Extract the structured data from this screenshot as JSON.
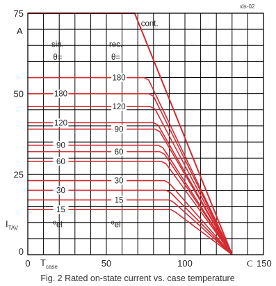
{
  "chart_data": {
    "type": "line",
    "caption": "Fig. 2 Rated on-state current vs. case temperature",
    "code": "xls-02",
    "xlim": [
      0,
      150
    ],
    "ylim": [
      0,
      75
    ],
    "x_ticks": [
      "0",
      "50",
      "100",
      "150"
    ],
    "x_label": "T",
    "x_label_sub": "case",
    "x_unit": "C",
    "y_ticks": [
      "0",
      "25",
      "50",
      "75"
    ],
    "y_unit": "A",
    "y_label": "I",
    "y_label_sub": "TAV",
    "grid": true,
    "line_color": "#d42a30",
    "end_point": [
      130,
      0
    ],
    "cont": {
      "label": "cont.",
      "points": [
        [
          0,
          75
        ],
        [
          68,
          75
        ],
        [
          130,
          0
        ]
      ]
    },
    "groups": [
      {
        "name": "sin.",
        "theta": "θ=",
        "unit": "el",
        "unit_prefix": "o",
        "series": [
          {
            "label": "180",
            "value": 50,
            "knee": 77
          },
          {
            "label": "120",
            "value": 41,
            "knee": 80
          },
          {
            "label": "90",
            "value": 34,
            "knee": 83
          },
          {
            "label": "60",
            "value": 29,
            "knee": 85
          },
          {
            "label": "30",
            "value": 20,
            "knee": 88
          },
          {
            "label": "15",
            "value": 14,
            "knee": 91
          }
        ]
      },
      {
        "name": "rec.",
        "theta": "θ=",
        "unit": "el",
        "unit_prefix": "o",
        "series": [
          {
            "label": "180",
            "value": 55,
            "knee": 74
          },
          {
            "label": "120",
            "value": 46,
            "knee": 78
          },
          {
            "label": "90",
            "value": 39,
            "knee": 81
          },
          {
            "label": "60",
            "value": 32,
            "knee": 84
          },
          {
            "label": "30",
            "value": 23,
            "knee": 87
          },
          {
            "label": "15",
            "value": 17,
            "knee": 90
          }
        ]
      }
    ]
  }
}
